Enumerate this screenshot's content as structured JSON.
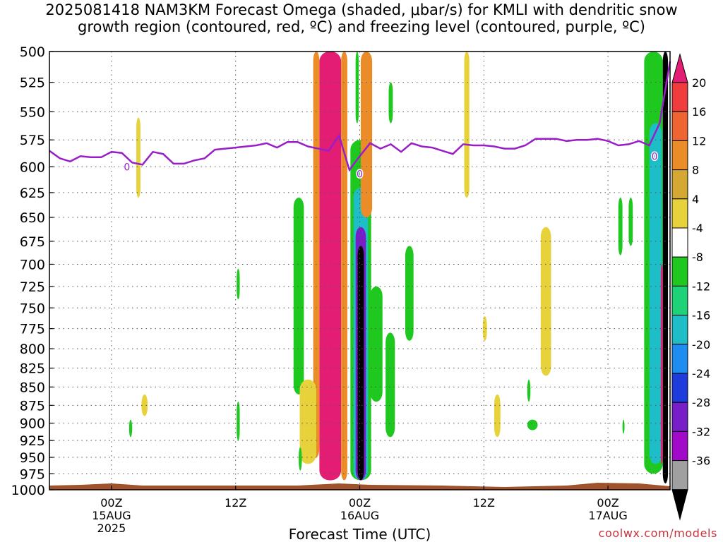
{
  "title_line1": "2025081418 NAM3KM Forecast Omega (shaded, μbar/s) for KMLI with dendritic snow",
  "title_line2": "growth region (contoured, red, ºC) and freezing level (contoured, purple, ºC)",
  "credit": "coolwx.com/models",
  "chart_data": {
    "type": "time-height contour",
    "xlabel": "Forecast Time (UTC)",
    "ylabel": "",
    "x_ticks": [
      {
        "hour": 6,
        "lines": [
          "00Z",
          "15AUG",
          "2025"
        ]
      },
      {
        "hour": 18,
        "lines": [
          "12Z"
        ]
      },
      {
        "hour": 30,
        "lines": [
          "00Z",
          "16AUG"
        ]
      },
      {
        "hour": 42,
        "lines": [
          "12Z"
        ]
      },
      {
        "hour": 54,
        "lines": [
          "00Z",
          "17AUG"
        ]
      }
    ],
    "x_range_hours": [
      0,
      60
    ],
    "y_ticks": [
      500,
      525,
      550,
      575,
      600,
      625,
      650,
      675,
      700,
      725,
      750,
      775,
      800,
      825,
      850,
      875,
      900,
      925,
      950,
      975,
      1000
    ],
    "y_range_hPa": [
      500,
      1000
    ],
    "y_scale": "log-pressure",
    "grid": true,
    "colorbar": {
      "labels": [
        "20",
        "16",
        "12",
        "8",
        "4",
        "-4",
        "-8",
        "-12",
        "-16",
        "-20",
        "-24",
        "-28",
        "-32",
        "-36"
      ],
      "colors": [
        "#e21d73",
        "#f03c3c",
        "#f06432",
        "#ea8c28",
        "#d4a832",
        "#e8d23c",
        "#ffffff",
        "#1ec81e",
        "#1ed278",
        "#1ebec8",
        "#1e8cf0",
        "#1e3cdc",
        "#781ec8",
        "#a00ac8",
        "#a0a0a0",
        "#000000"
      ]
    },
    "freezing_level": {
      "color": "#9a1ec8",
      "label": "0",
      "points": [
        [
          0,
          585
        ],
        [
          1,
          592
        ],
        [
          2,
          595
        ],
        [
          3,
          590
        ],
        [
          4,
          591
        ],
        [
          5,
          591
        ],
        [
          6,
          586
        ],
        [
          7,
          587
        ],
        [
          8,
          596
        ],
        [
          9,
          598
        ],
        [
          10,
          586
        ],
        [
          11,
          588
        ],
        [
          12,
          597
        ],
        [
          13,
          597
        ],
        [
          14,
          594
        ],
        [
          15,
          592
        ],
        [
          16,
          584
        ],
        [
          17,
          583
        ],
        [
          18,
          582
        ],
        [
          19,
          581
        ],
        [
          20,
          580
        ],
        [
          21,
          578
        ],
        [
          22,
          582
        ],
        [
          23,
          577
        ],
        [
          24,
          577
        ],
        [
          25,
          581
        ],
        [
          26,
          583
        ],
        [
          27,
          585
        ],
        [
          28,
          571
        ],
        [
          29,
          603
        ],
        [
          30,
          590
        ],
        [
          31,
          578
        ],
        [
          32,
          583
        ],
        [
          33,
          579
        ],
        [
          34,
          586
        ],
        [
          35,
          578
        ],
        [
          36,
          581
        ],
        [
          37,
          582
        ],
        [
          38,
          585
        ],
        [
          39,
          588
        ],
        [
          40,
          579
        ],
        [
          41,
          580
        ],
        [
          42,
          580
        ],
        [
          43,
          581
        ],
        [
          44,
          583
        ],
        [
          45,
          583
        ],
        [
          46,
          580
        ],
        [
          47,
          574
        ],
        [
          48,
          574
        ],
        [
          49,
          574
        ],
        [
          50,
          576
        ],
        [
          51,
          575
        ],
        [
          52,
          575
        ],
        [
          53,
          574
        ],
        [
          54,
          576
        ],
        [
          55,
          580
        ],
        [
          56,
          579
        ],
        [
          57,
          576
        ],
        [
          58,
          580
        ],
        [
          59,
          560
        ],
        [
          60,
          508
        ]
      ]
    },
    "omega_features": [
      {
        "hour_start": 26.1,
        "hour_end": 28.2,
        "p_top": 500,
        "p_bottom": 985,
        "value": 20
      },
      {
        "hour_start": 25.5,
        "hour_end": 26.1,
        "p_top": 500,
        "p_bottom": 950,
        "value": 8
      },
      {
        "hour_start": 28.2,
        "hour_end": 28.8,
        "p_top": 500,
        "p_bottom": 985,
        "value": 8
      },
      {
        "hour_start": 24.2,
        "hour_end": 25.8,
        "p_top": 840,
        "p_bottom": 960,
        "value": 4
      },
      {
        "hour_start": 29.8,
        "hour_end": 30.4,
        "p_top": 680,
        "p_bottom": 985,
        "value": -36
      },
      {
        "hour_start": 29.6,
        "hour_end": 30.6,
        "p_top": 660,
        "p_bottom": 985,
        "value": -28
      },
      {
        "hour_start": 29.4,
        "hour_end": 30.8,
        "p_top": 620,
        "p_bottom": 985,
        "value": -16
      },
      {
        "hour_start": 29.1,
        "hour_end": 31.1,
        "p_top": 575,
        "p_bottom": 985,
        "value": -8
      },
      {
        "hour_start": 30.1,
        "hour_end": 31.2,
        "p_top": 500,
        "p_bottom": 650,
        "value": 8
      },
      {
        "hour_start": 30.5,
        "hour_end": 30.9,
        "p_top": 520,
        "p_bottom": 610,
        "value": 12
      },
      {
        "hour_start": 29.6,
        "hour_end": 29.9,
        "p_top": 500,
        "p_bottom": 560,
        "value": -8
      },
      {
        "hour_start": 23.6,
        "hour_end": 24.6,
        "p_top": 630,
        "p_bottom": 860,
        "value": -8
      },
      {
        "hour_start": 31.0,
        "hour_end": 32.2,
        "p_top": 725,
        "p_bottom": 870,
        "value": -8
      },
      {
        "hour_start": 32.5,
        "hour_end": 33.4,
        "p_top": 780,
        "p_bottom": 920,
        "value": -8
      },
      {
        "hour_start": 34.4,
        "hour_end": 35.2,
        "p_top": 680,
        "p_bottom": 790,
        "value": -8
      },
      {
        "hour_start": 41.9,
        "hour_end": 42.3,
        "p_top": 760,
        "p_bottom": 790,
        "value": 4
      },
      {
        "hour_start": 43.0,
        "hour_end": 43.6,
        "p_top": 860,
        "p_bottom": 920,
        "value": 4
      },
      {
        "hour_start": 40.1,
        "hour_end": 40.6,
        "p_top": 500,
        "p_bottom": 630,
        "value": 4
      },
      {
        "hour_start": 47.5,
        "hour_end": 48.5,
        "p_top": 660,
        "p_bottom": 835,
        "value": 4
      },
      {
        "hour_start": 8.4,
        "hour_end": 8.8,
        "p_top": 555,
        "p_bottom": 630,
        "value": 4
      },
      {
        "hour_start": 8.9,
        "hour_end": 9.5,
        "p_top": 860,
        "p_bottom": 890,
        "value": 4
      },
      {
        "hour_start": 57.5,
        "hour_end": 59.3,
        "p_top": 500,
        "p_bottom": 975,
        "value": -8
      },
      {
        "hour_start": 58.0,
        "hour_end": 59.2,
        "p_top": 560,
        "p_bottom": 960,
        "value": -16
      },
      {
        "hour_start": 59.3,
        "hour_end": 59.8,
        "p_top": 500,
        "p_bottom": 990,
        "value": -36
      },
      {
        "hour_start": 59.1,
        "hour_end": 59.3,
        "p_top": 700,
        "p_bottom": 960,
        "value": 20
      },
      {
        "hour_start": 18.1,
        "hour_end": 18.4,
        "p_top": 705,
        "p_bottom": 740,
        "value": -8
      },
      {
        "hour_start": 18.1,
        "hour_end": 18.4,
        "p_top": 870,
        "p_bottom": 925,
        "value": -8
      },
      {
        "hour_start": 55.0,
        "hour_end": 55.4,
        "p_top": 630,
        "p_bottom": 690,
        "value": -8
      },
      {
        "hour_start": 56.0,
        "hour_end": 56.4,
        "p_top": 630,
        "p_bottom": 680,
        "value": -8
      },
      {
        "hour_start": 7.7,
        "hour_end": 8.0,
        "p_top": 895,
        "p_bottom": 920,
        "value": -8
      },
      {
        "hour_start": 46.2,
        "hour_end": 46.5,
        "p_top": 840,
        "p_bottom": 870,
        "value": -8
      },
      {
        "hour_start": 46.2,
        "hour_end": 47.2,
        "p_top": 895,
        "p_bottom": 910,
        "value": -8
      },
      {
        "hour_start": 55.4,
        "hour_end": 55.6,
        "p_top": 895,
        "p_bottom": 915,
        "value": -8
      },
      {
        "hour_start": 32.8,
        "hour_end": 33.2,
        "p_top": 525,
        "p_bottom": 560,
        "value": -8
      },
      {
        "hour_start": 24.1,
        "hour_end": 24.4,
        "p_top": 935,
        "p_bottom": 970,
        "value": -8
      }
    ]
  }
}
